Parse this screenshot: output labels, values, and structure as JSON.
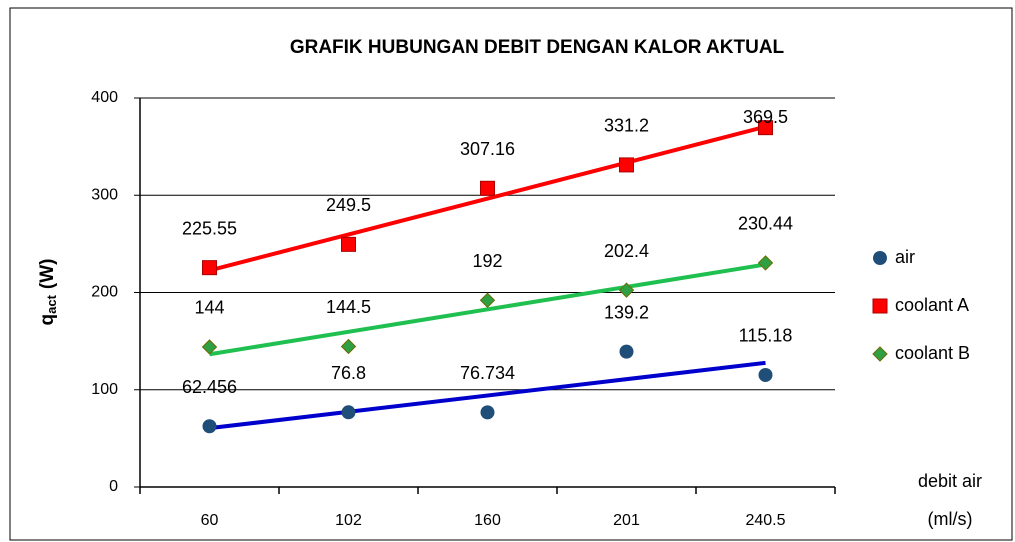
{
  "chart_data": {
    "type": "scatter",
    "title": "GRAFIK HUBUNGAN DEBIT DENGAN KALOR AKTUAL",
    "y_label": {
      "text": "q",
      "subscript": "act",
      "suffix": "(W)"
    },
    "x_label": [
      "debit air",
      "(ml/s)"
    ],
    "categories": [
      "60",
      "102",
      "160",
      "201",
      "240.5"
    ],
    "ylim": [
      0,
      400
    ],
    "yticks": [
      0,
      100,
      200,
      300,
      400
    ],
    "grid": true,
    "trendline": "linear",
    "legend": "right",
    "series": [
      {
        "name": "air",
        "color": "#1f4e79",
        "marker": "circle",
        "trend_color": "#0000cc",
        "values": [
          62.456,
          76.8,
          76.734,
          139.2,
          115.18
        ]
      },
      {
        "name": "coolant A",
        "color": "#ff0000",
        "marker": "square",
        "trend_color": "#ff0000",
        "values": [
          225.55,
          249.5,
          307.16,
          331.2,
          369.5
        ]
      },
      {
        "name": "coolant B",
        "color": "#2ea043",
        "marker": "diamond",
        "trend_color": "#1fbf50",
        "values": [
          144,
          144.5,
          192,
          202.4,
          230.44
        ]
      }
    ]
  }
}
